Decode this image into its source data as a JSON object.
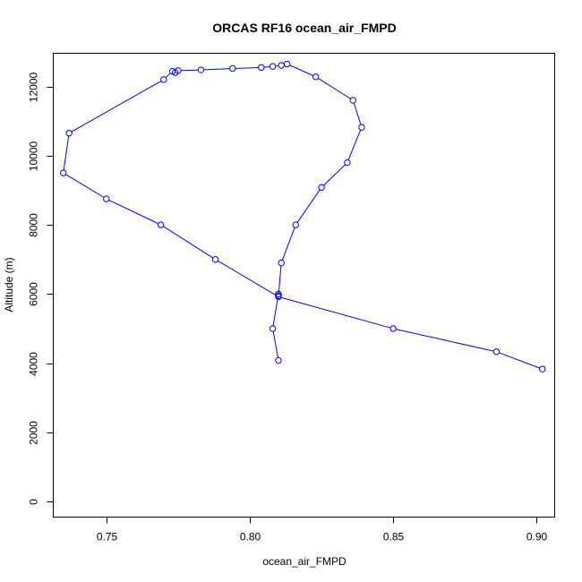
{
  "chart_data": {
    "type": "line",
    "title": "ORCAS RF16 ocean_air_FMPD",
    "xlabel": "ocean_air_FMPD",
    "ylabel": "Altitude (m)",
    "xlim": [
      0.7315,
      0.9063
    ],
    "ylim": [
      -450,
      12960
    ],
    "x_ticks": [
      0.75,
      0.8,
      0.85,
      0.9
    ],
    "x_tick_labels": [
      "0.75",
      "0.80",
      "0.85",
      "0.90"
    ],
    "y_ticks": [
      0,
      2000,
      4000,
      6000,
      8000,
      10000,
      12000
    ],
    "y_tick_labels": [
      "0",
      "2000",
      "4000",
      "6000",
      "8000",
      "10000",
      "12000"
    ],
    "grid": false,
    "series": [
      {
        "color": "#0000ff",
        "marker": "open-circle",
        "line": "solid",
        "points": [
          {
            "x": 0.81,
            "y": 4080
          },
          {
            "x": 0.808,
            "y": 5000
          },
          {
            "x": 0.81,
            "y": 6000
          },
          {
            "x": 0.81,
            "y": 5950
          },
          {
            "x": 0.811,
            "y": 6900
          },
          {
            "x": 0.816,
            "y": 8000
          },
          {
            "x": 0.825,
            "y": 9080
          },
          {
            "x": 0.834,
            "y": 9800
          },
          {
            "x": 0.839,
            "y": 10820
          },
          {
            "x": 0.836,
            "y": 11600
          },
          {
            "x": 0.823,
            "y": 12280
          },
          {
            "x": 0.813,
            "y": 12650
          },
          {
            "x": 0.811,
            "y": 12610
          },
          {
            "x": 0.808,
            "y": 12580
          },
          {
            "x": 0.804,
            "y": 12550
          },
          {
            "x": 0.794,
            "y": 12520
          },
          {
            "x": 0.783,
            "y": 12480
          },
          {
            "x": 0.775,
            "y": 12460
          },
          {
            "x": 0.774,
            "y": 12400
          },
          {
            "x": 0.773,
            "y": 12440
          },
          {
            "x": 0.77,
            "y": 12200
          },
          {
            "x": 0.737,
            "y": 10650
          },
          {
            "x": 0.735,
            "y": 9500
          },
          {
            "x": 0.75,
            "y": 8750
          },
          {
            "x": 0.769,
            "y": 8000
          },
          {
            "x": 0.788,
            "y": 7000
          },
          {
            "x": 0.81,
            "y": 5920
          },
          {
            "x": 0.85,
            "y": 5000
          },
          {
            "x": 0.886,
            "y": 4330
          },
          {
            "x": 0.902,
            "y": 3830
          }
        ]
      }
    ]
  }
}
